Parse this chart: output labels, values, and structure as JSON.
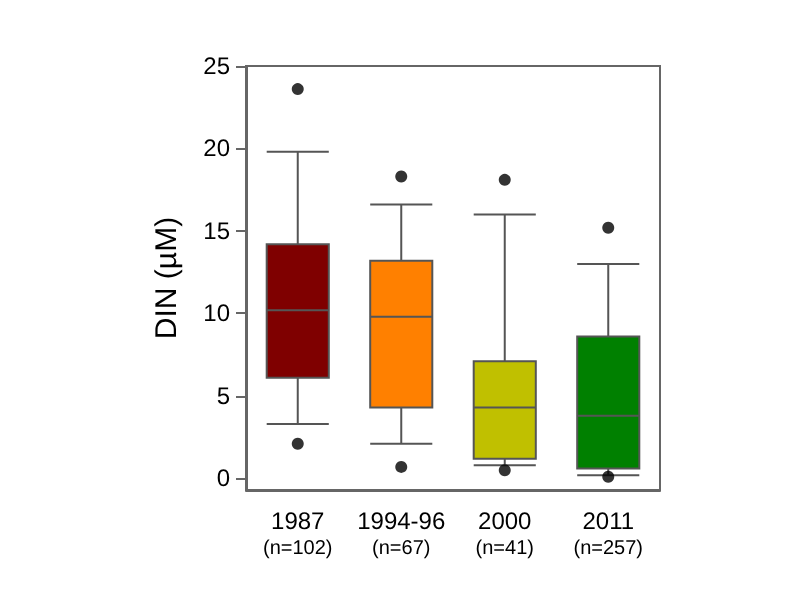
{
  "chart_data": {
    "type": "box",
    "ylabel": "DIN (µM)",
    "categories": [
      "1987\n(n=102)",
      "1994-96\n(n=67)",
      "2000\n(n=41)",
      "2011\n(n=257)"
    ],
    "colors": [
      "#7f0000",
      "#ff8000",
      "#c0c000",
      "#008000"
    ],
    "boxes": [
      {
        "low": 3.3,
        "q1": 6.1,
        "median": 10.2,
        "q3": 14.2,
        "high": 19.8,
        "outliers": [
          23.6,
          2.1
        ]
      },
      {
        "low": 2.1,
        "q1": 4.3,
        "median": 9.8,
        "q3": 13.2,
        "high": 16.6,
        "outliers": [
          18.3,
          0.7
        ]
      },
      {
        "low": 0.8,
        "q1": 1.2,
        "median": 4.3,
        "q3": 7.1,
        "high": 16.0,
        "outliers": [
          18.1,
          0.5
        ]
      },
      {
        "low": 0.2,
        "q1": 0.6,
        "median": 3.8,
        "q3": 8.6,
        "high": 13.0,
        "outliers": [
          15.2,
          0.1
        ]
      }
    ],
    "ylim": [
      -0.7,
      25
    ],
    "yticks": [
      0,
      5,
      10,
      15,
      20,
      25
    ],
    "grid": false
  }
}
